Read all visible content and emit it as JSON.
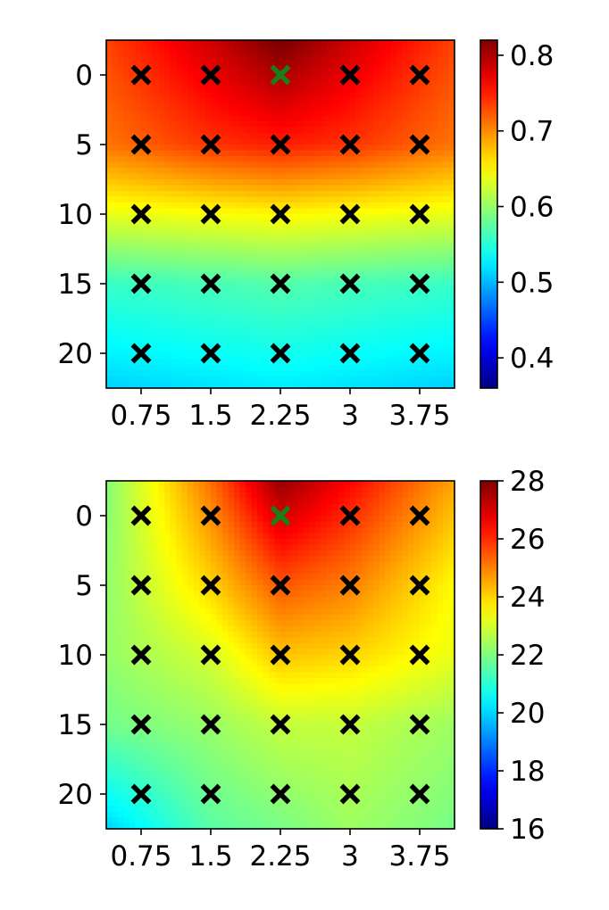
{
  "chart_data": [
    {
      "type": "heatmap",
      "title": "",
      "xlabel": "",
      "ylabel": "",
      "x_ticks": [
        "0.75",
        "1.5",
        "2.25",
        "3",
        "3.75"
      ],
      "x_values": [
        0.75,
        1.5,
        2.25,
        3,
        3.75
      ],
      "y_ticks": [
        "0",
        "5",
        "10",
        "15",
        "20"
      ],
      "y_values": [
        0,
        5,
        10,
        15,
        20
      ],
      "y_inverted": true,
      "colormap": "jet",
      "value_range": [
        0.36,
        0.82
      ],
      "colorbar_ticks": [
        "0.4",
        "0.5",
        "0.6",
        "0.7",
        "0.8"
      ],
      "colorbar_tick_values": [
        0.4,
        0.5,
        0.6,
        0.7,
        0.8
      ],
      "grid": false,
      "values": [
        [
          0.74,
          0.77,
          0.8,
          0.77,
          0.74
        ],
        [
          0.72,
          0.74,
          0.75,
          0.74,
          0.72
        ],
        [
          0.64,
          0.645,
          0.65,
          0.645,
          0.64
        ],
        [
          0.56,
          0.565,
          0.57,
          0.565,
          0.56
        ],
        [
          0.53,
          0.535,
          0.54,
          0.535,
          0.53
        ]
      ],
      "highlight": {
        "x": 2.25,
        "y": 0,
        "color": "#1a7f1a"
      },
      "marker_color": "#000000"
    },
    {
      "type": "heatmap",
      "title": "",
      "xlabel": "",
      "ylabel": "",
      "x_ticks": [
        "0.75",
        "1.5",
        "2.25",
        "3",
        "3.75"
      ],
      "x_values": [
        0.75,
        1.5,
        2.25,
        3,
        3.75
      ],
      "y_ticks": [
        "0",
        "5",
        "10",
        "15",
        "20"
      ],
      "y_values": [
        0,
        5,
        10,
        15,
        20
      ],
      "y_inverted": true,
      "colormap": "jet",
      "value_range": [
        16,
        28
      ],
      "colorbar_ticks": [
        "16",
        "18",
        "20",
        "22",
        "24",
        "26",
        "28"
      ],
      "colorbar_tick_values": [
        16,
        18,
        20,
        22,
        24,
        26,
        28
      ],
      "grid": false,
      "values": [
        [
          23.0,
          24.8,
          27.0,
          26.0,
          24.8
        ],
        [
          22.8,
          24.0,
          25.5,
          25.0,
          24.0
        ],
        [
          22.5,
          23.0,
          24.2,
          24.0,
          23.5
        ],
        [
          22.0,
          22.3,
          22.8,
          22.8,
          22.5
        ],
        [
          21.0,
          21.8,
          22.2,
          22.5,
          22.2
        ]
      ],
      "highlight": {
        "x": 2.25,
        "y": 0,
        "color": "#1a7f1a"
      },
      "marker_color": "#000000"
    }
  ]
}
